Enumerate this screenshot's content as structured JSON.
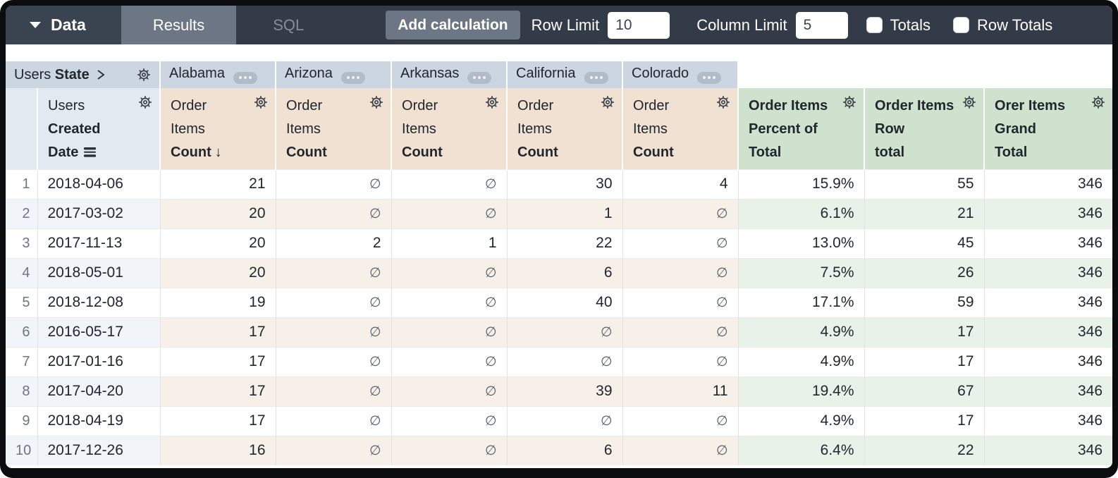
{
  "topbar": {
    "data_tab": "Data",
    "results_tab": "Results",
    "sql_tab": "SQL",
    "add_calculation": "Add calculation",
    "row_limit_label": "Row Limit",
    "row_limit_value": "10",
    "column_limit_label": "Column Limit",
    "column_limit_value": "5",
    "totals_label": "Totals",
    "row_totals_label": "Row Totals",
    "totals_checked": false,
    "row_totals_checked": false
  },
  "table": {
    "pivot_dimension": {
      "prefix": "Users",
      "name": "State"
    },
    "pivot_values": [
      "Alabama",
      "Arizona",
      "Arkansas",
      "California",
      "Colorado"
    ],
    "dimension_column": {
      "lines": [
        {
          "text": "Users",
          "bold": false
        },
        {
          "text": "Created",
          "bold": true
        },
        {
          "text": "Date",
          "bold": true,
          "icon": "bars-icon"
        }
      ]
    },
    "measure_header_lines": [
      {
        "text": "Order",
        "bold": false
      },
      {
        "text": "Items",
        "bold": false
      },
      {
        "text": "Count",
        "bold": true
      }
    ],
    "sorted_measure_index": 0,
    "sort_arrow": "↓",
    "calc_columns": [
      {
        "lines": [
          "Order Items",
          "Percent of",
          "Total"
        ]
      },
      {
        "lines": [
          "Order Items",
          "Row",
          "total"
        ]
      },
      {
        "lines": [
          "Orer Items",
          "Grand",
          "Total"
        ]
      }
    ],
    "null_symbol": "∅",
    "rows": [
      {
        "n": "1",
        "date": "2018-04-06",
        "measures": [
          "21",
          null,
          null,
          "30",
          "4"
        ],
        "calcs": [
          "15.9%",
          "55",
          "346"
        ]
      },
      {
        "n": "2",
        "date": "2017-03-02",
        "measures": [
          "20",
          null,
          null,
          "1",
          null
        ],
        "calcs": [
          "6.1%",
          "21",
          "346"
        ]
      },
      {
        "n": "3",
        "date": "2017-11-13",
        "measures": [
          "20",
          "2",
          "1",
          "22",
          null
        ],
        "calcs": [
          "13.0%",
          "45",
          "346"
        ]
      },
      {
        "n": "4",
        "date": "2018-05-01",
        "measures": [
          "20",
          null,
          null,
          "6",
          null
        ],
        "calcs": [
          "7.5%",
          "26",
          "346"
        ]
      },
      {
        "n": "5",
        "date": "2018-12-08",
        "measures": [
          "19",
          null,
          null,
          "40",
          null
        ],
        "calcs": [
          "17.1%",
          "59",
          "346"
        ]
      },
      {
        "n": "6",
        "date": "2016-05-17",
        "measures": [
          "17",
          null,
          null,
          null,
          null
        ],
        "calcs": [
          "4.9%",
          "17",
          "346"
        ]
      },
      {
        "n": "7",
        "date": "2017-01-16",
        "measures": [
          "17",
          null,
          null,
          null,
          null
        ],
        "calcs": [
          "4.9%",
          "17",
          "346"
        ]
      },
      {
        "n": "8",
        "date": "2017-04-20",
        "measures": [
          "17",
          null,
          null,
          "39",
          "11"
        ],
        "calcs": [
          "19.4%",
          "67",
          "346"
        ]
      },
      {
        "n": "9",
        "date": "2018-04-19",
        "measures": [
          "17",
          null,
          null,
          null,
          null
        ],
        "calcs": [
          "4.9%",
          "17",
          "346"
        ]
      },
      {
        "n": "10",
        "date": "2017-12-26",
        "measures": [
          "16",
          null,
          null,
          "6",
          null
        ],
        "calcs": [
          "6.4%",
          "22",
          "346"
        ]
      }
    ]
  },
  "colors": {
    "frame_bg": "#0B0C0E",
    "topbar_bg": "#333B48",
    "data_tab_bg": "#3A4350",
    "results_tab_bg": "#6D7685",
    "sql_text": "#848D9A",
    "button_bg": "#6D7685",
    "pivot_header_bg": "#CCD6E1",
    "dimension_header_bg": "#E2E9F0",
    "measure_header_bg": "#F0E1D3",
    "calc_header_bg": "#CEE2CD",
    "row_even_dim": "#F1F5F9",
    "row_even_measure": "#F7F0E9",
    "row_even_calc": "#E9F2E9",
    "text_dark": "#21272E"
  }
}
